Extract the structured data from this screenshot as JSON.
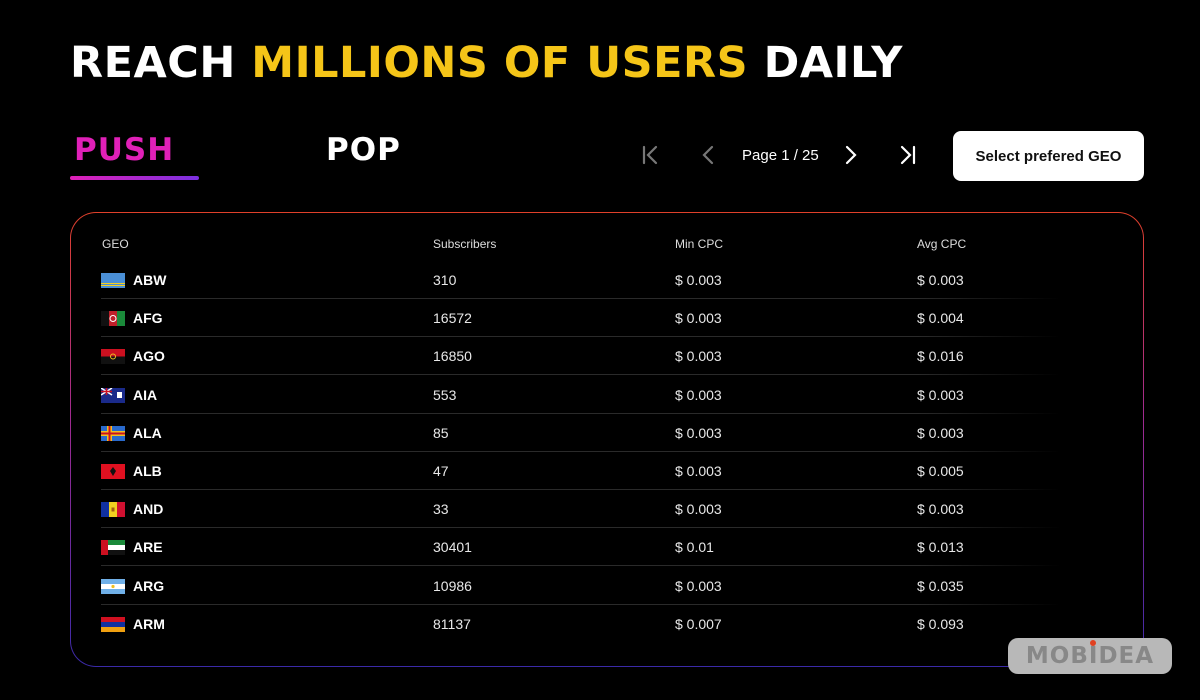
{
  "headline": {
    "part1": "REACH ",
    "highlight": "MILLIONS OF USERS",
    "part2": " DAILY",
    "highlight_color": "#f5c518"
  },
  "tabs": [
    {
      "label": "PUSH",
      "active": true,
      "color": "#e020b8"
    },
    {
      "label": "POP",
      "active": false
    }
  ],
  "pagination": {
    "first_icon": "first-page-icon",
    "prev_icon": "chevron-left-icon",
    "page_label": "Page 1 / 25",
    "next_icon": "chevron-right-icon",
    "last_icon": "last-page-icon"
  },
  "geo_button_label": "Select prefered GEO",
  "table": {
    "columns": [
      "GEO",
      "Subscribers",
      "Min CPC",
      "Avg CPC"
    ],
    "rows": [
      {
        "geo": "ABW",
        "flag": "flag-aruba",
        "subscribers": "310",
        "min_cpc": "$ 0.003",
        "avg_cpc": "$ 0.003"
      },
      {
        "geo": "AFG",
        "flag": "flag-afghanistan",
        "subscribers": "16572",
        "min_cpc": "$ 0.003",
        "avg_cpc": "$ 0.004"
      },
      {
        "geo": "AGO",
        "flag": "flag-angola",
        "subscribers": "16850",
        "min_cpc": "$ 0.003",
        "avg_cpc": "$ 0.016"
      },
      {
        "geo": "AIA",
        "flag": "flag-anguilla",
        "subscribers": "553",
        "min_cpc": "$ 0.003",
        "avg_cpc": "$ 0.003"
      },
      {
        "geo": "ALA",
        "flag": "flag-aland",
        "subscribers": "85",
        "min_cpc": "$ 0.003",
        "avg_cpc": "$ 0.003"
      },
      {
        "geo": "ALB",
        "flag": "flag-albania",
        "subscribers": "47",
        "min_cpc": "$ 0.003",
        "avg_cpc": "$ 0.005"
      },
      {
        "geo": "AND",
        "flag": "flag-andorra",
        "subscribers": "33",
        "min_cpc": "$ 0.003",
        "avg_cpc": "$ 0.003"
      },
      {
        "geo": "ARE",
        "flag": "flag-uae",
        "subscribers": "30401",
        "min_cpc": "$ 0.01",
        "avg_cpc": "$ 0.013"
      },
      {
        "geo": "ARG",
        "flag": "flag-argentina",
        "subscribers": "10986",
        "min_cpc": "$ 0.003",
        "avg_cpc": "$ 0.035"
      },
      {
        "geo": "ARM",
        "flag": "flag-armenia",
        "subscribers": "81137",
        "min_cpc": "$ 0.007",
        "avg_cpc": "$ 0.093"
      }
    ]
  },
  "brand": "MOBIDEA"
}
